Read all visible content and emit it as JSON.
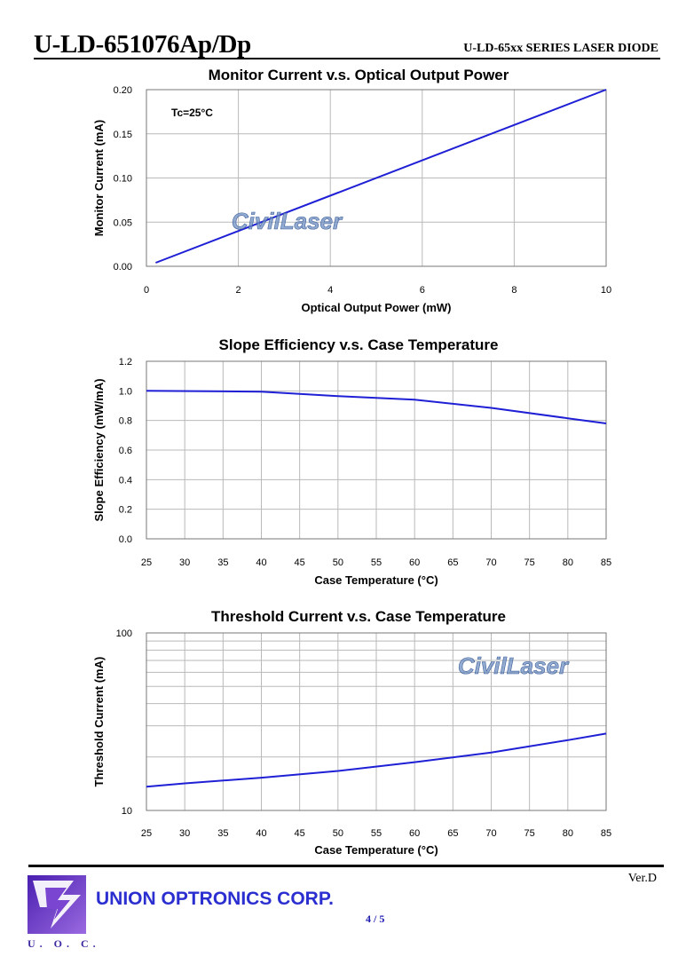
{
  "header": {
    "model": "U-LD-651076Ap/Dp",
    "series": "U-LD-65xx SERIES LASER DIODE"
  },
  "watermark": "CivilLaser",
  "chart_data": [
    {
      "type": "line",
      "title": "Monitor Current v.s. Optical Output Power",
      "xlabel": "Optical Output Power (mW)",
      "ylabel": "Monitor Current (mA)",
      "annotation": "Tc=25°C",
      "xlim": [
        0,
        10
      ],
      "ylim": [
        0,
        0.2
      ],
      "xticks": [
        "0",
        "2",
        "4",
        "6",
        "8",
        "10"
      ],
      "yticks": [
        "0.00",
        "0.05",
        "0.10",
        "0.15",
        "0.20"
      ],
      "grid": true,
      "series": [
        {
          "x": [
            0.2,
            10
          ],
          "y": [
            0.004,
            0.2
          ]
        }
      ]
    },
    {
      "type": "line",
      "title": "Slope Efficiency v.s. Case Temperature",
      "xlabel": "Case Temperature (°C)",
      "ylabel": "Slope Efficiency (mW/mA)",
      "xlim": [
        25,
        85
      ],
      "ylim": [
        0,
        1.2
      ],
      "xticks": [
        "25",
        "30",
        "35",
        "40",
        "45",
        "50",
        "55",
        "60",
        "65",
        "70",
        "75",
        "80",
        "85"
      ],
      "yticks": [
        "0.0",
        "0.2",
        "0.4",
        "0.6",
        "0.8",
        "1.0",
        "1.2"
      ],
      "grid": true,
      "series": [
        {
          "x": [
            25,
            40,
            50,
            60,
            70,
            80,
            85
          ],
          "y": [
            1.0,
            0.995,
            0.965,
            0.94,
            0.885,
            0.815,
            0.78
          ]
        }
      ]
    },
    {
      "type": "line",
      "title": "Threshold Current v.s. Case Temperature",
      "xlabel": "Case Temperature (°C)",
      "ylabel": "Threshold Current (mA)",
      "xlim": [
        25,
        85
      ],
      "ylim": [
        10,
        100
      ],
      "yscale": "log",
      "xticks": [
        "25",
        "30",
        "35",
        "40",
        "45",
        "50",
        "55",
        "60",
        "65",
        "70",
        "75",
        "80",
        "85"
      ],
      "yticks": [
        "10",
        "100"
      ],
      "grid": true,
      "series": [
        {
          "x": [
            25,
            30,
            40,
            50,
            60,
            70,
            80,
            85
          ],
          "y": [
            13.6,
            14.2,
            15.3,
            16.7,
            18.7,
            21.2,
            24.9,
            27.1
          ]
        }
      ]
    }
  ],
  "footer": {
    "version": "Ver.D",
    "company": "UNION OPTRONICS CORP.",
    "page": "4 / 5",
    "logo_text": "U. O. C."
  },
  "colors": {
    "line": "#1f1fd6",
    "grid": "#b9b9b9",
    "company": "#2b2fd0",
    "logo": "#6a2fc0"
  }
}
